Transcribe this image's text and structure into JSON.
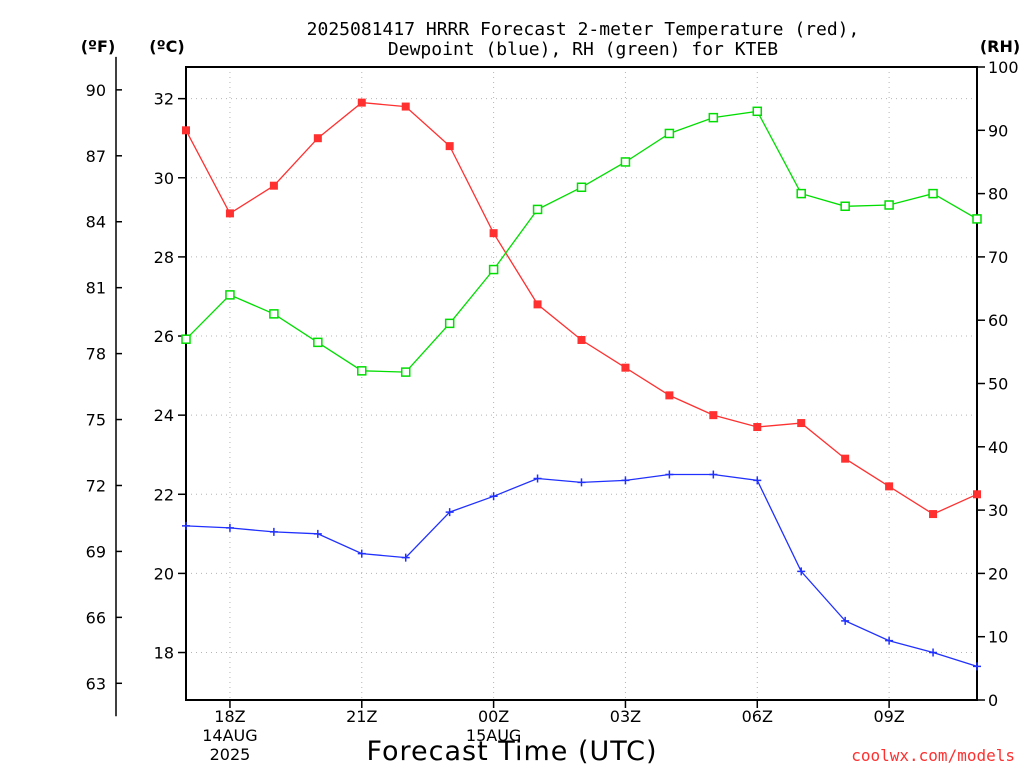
{
  "chart_data": {
    "type": "line",
    "title_line1": "2025081417 HRRR Forecast 2-meter Temperature (red),",
    "title_line2": "Dewpoint (blue), RH (green) for KTEB",
    "xlabel": "Forecast Time (UTC)",
    "credit": "coolwx.com/models",
    "units": {
      "fahrenheit": "(ºF)",
      "celsius": "(ºC)",
      "rh": "(RH)"
    },
    "x_hours": [
      17,
      18,
      19,
      20,
      21,
      22,
      23,
      24,
      25,
      26,
      27,
      28,
      29,
      30,
      31,
      32,
      33,
      34,
      35
    ],
    "x_ticks": [
      {
        "hour": 18,
        "label": "18Z",
        "sub1": "14AUG",
        "sub2": "2025"
      },
      {
        "hour": 21,
        "label": "21Z",
        "sub1": "",
        "sub2": ""
      },
      {
        "hour": 24,
        "label": "00Z",
        "sub1": "15AUG",
        "sub2": ""
      },
      {
        "hour": 27,
        "label": "03Z",
        "sub1": "",
        "sub2": ""
      },
      {
        "hour": 30,
        "label": "06Z",
        "sub1": "",
        "sub2": ""
      },
      {
        "hour": 33,
        "label": "09Z",
        "sub1": "",
        "sub2": ""
      }
    ],
    "celsius_axis": {
      "range": [
        16.8,
        32.8
      ],
      "ticks": [
        "18",
        "20",
        "22",
        "24",
        "26",
        "28",
        "30",
        "32"
      ]
    },
    "fahrenheit_ticks": [
      "63",
      "66",
      "69",
      "72",
      "75",
      "78",
      "81",
      "84",
      "87",
      "90"
    ],
    "rh_axis": {
      "range": [
        0,
        100
      ],
      "ticks": [
        "0",
        "10",
        "20",
        "30",
        "40",
        "50",
        "60",
        "70",
        "80",
        "90",
        "100"
      ]
    },
    "series": [
      {
        "key": "temperature",
        "color": "#ff3030",
        "marker": "filled-square",
        "axis": "celsius",
        "values": [
          31.2,
          29.1,
          29.8,
          31.0,
          31.9,
          31.8,
          30.8,
          28.6,
          26.8,
          25.9,
          25.2,
          24.5,
          24.0,
          23.7,
          23.8,
          22.9,
          22.2,
          21.5,
          22.0
        ]
      },
      {
        "key": "dewpoint",
        "color": "#2030ff",
        "marker": "plus",
        "axis": "celsius",
        "values": [
          21.2,
          21.15,
          21.05,
          21.0,
          20.5,
          20.4,
          21.55,
          21.95,
          22.4,
          22.3,
          22.35,
          22.5,
          22.5,
          22.35,
          20.05,
          18.8,
          18.3,
          18.0,
          17.65
        ]
      },
      {
        "key": "rh",
        "color": "#00dd00",
        "marker": "open-square",
        "axis": "rh",
        "values": [
          57,
          64,
          61,
          56.5,
          52,
          51.8,
          59.5,
          68,
          77.5,
          81,
          85,
          89.5,
          92,
          93,
          80,
          78,
          78.2,
          80,
          76
        ]
      }
    ]
  }
}
